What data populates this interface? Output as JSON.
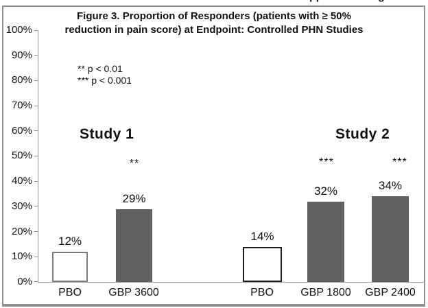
{
  "figure": {
    "title_line1": "Figure 3. Proportion of Responders (patients with ≥ 50%",
    "title_line2": "reduction in pain score) at Endpoint: Controlled PHN Studies",
    "cropped_top_text": {
      "fragment1": "pp",
      "fragment2": "g"
    }
  },
  "legend": {
    "line1": "** p < 0.01",
    "line2": "*** p < 0.001"
  },
  "annotations": {
    "study1": "Study 1",
    "study2": "Study 2"
  },
  "chart_data": {
    "type": "bar",
    "title": "Figure 3. Proportion of Responders (patients with ≥ 50% reduction in pain score) at Endpoint: Controlled PHN Studies",
    "xlabel": "",
    "ylabel": "",
    "ylim": [
      0,
      100
    ],
    "grid": false,
    "ytick_labels": [
      "100%",
      "90%",
      "80%",
      "70%",
      "60%",
      "50%",
      "40%",
      "30%",
      "20%",
      "10%",
      "0%"
    ],
    "legend_notes": [
      "** p < 0.01",
      "*** p < 0.001"
    ],
    "groups": [
      {
        "name": "Study 1",
        "bars": [
          {
            "label": "PBO",
            "value": 12,
            "value_label": "12%",
            "fill": "white",
            "significance": ""
          },
          {
            "label": "GBP 3600",
            "value": 29,
            "value_label": "29%",
            "fill": "gray",
            "significance": "**"
          }
        ]
      },
      {
        "name": "Study 2",
        "bars": [
          {
            "label": "PBO",
            "value": 14,
            "value_label": "14%",
            "fill": "white",
            "significance": ""
          },
          {
            "label": "GBP 1800",
            "value": 32,
            "value_label": "32%",
            "fill": "gray",
            "significance": "***"
          },
          {
            "label": "GBP 2400",
            "value": 34,
            "value_label": "34%",
            "fill": "gray",
            "significance": "***"
          }
        ]
      }
    ],
    "colors": {
      "bar_gray": "#616161",
      "bar_white": "#ffffff",
      "axis": "#8c8c8c",
      "border": "#8f8f8f",
      "text": "#111111"
    }
  }
}
